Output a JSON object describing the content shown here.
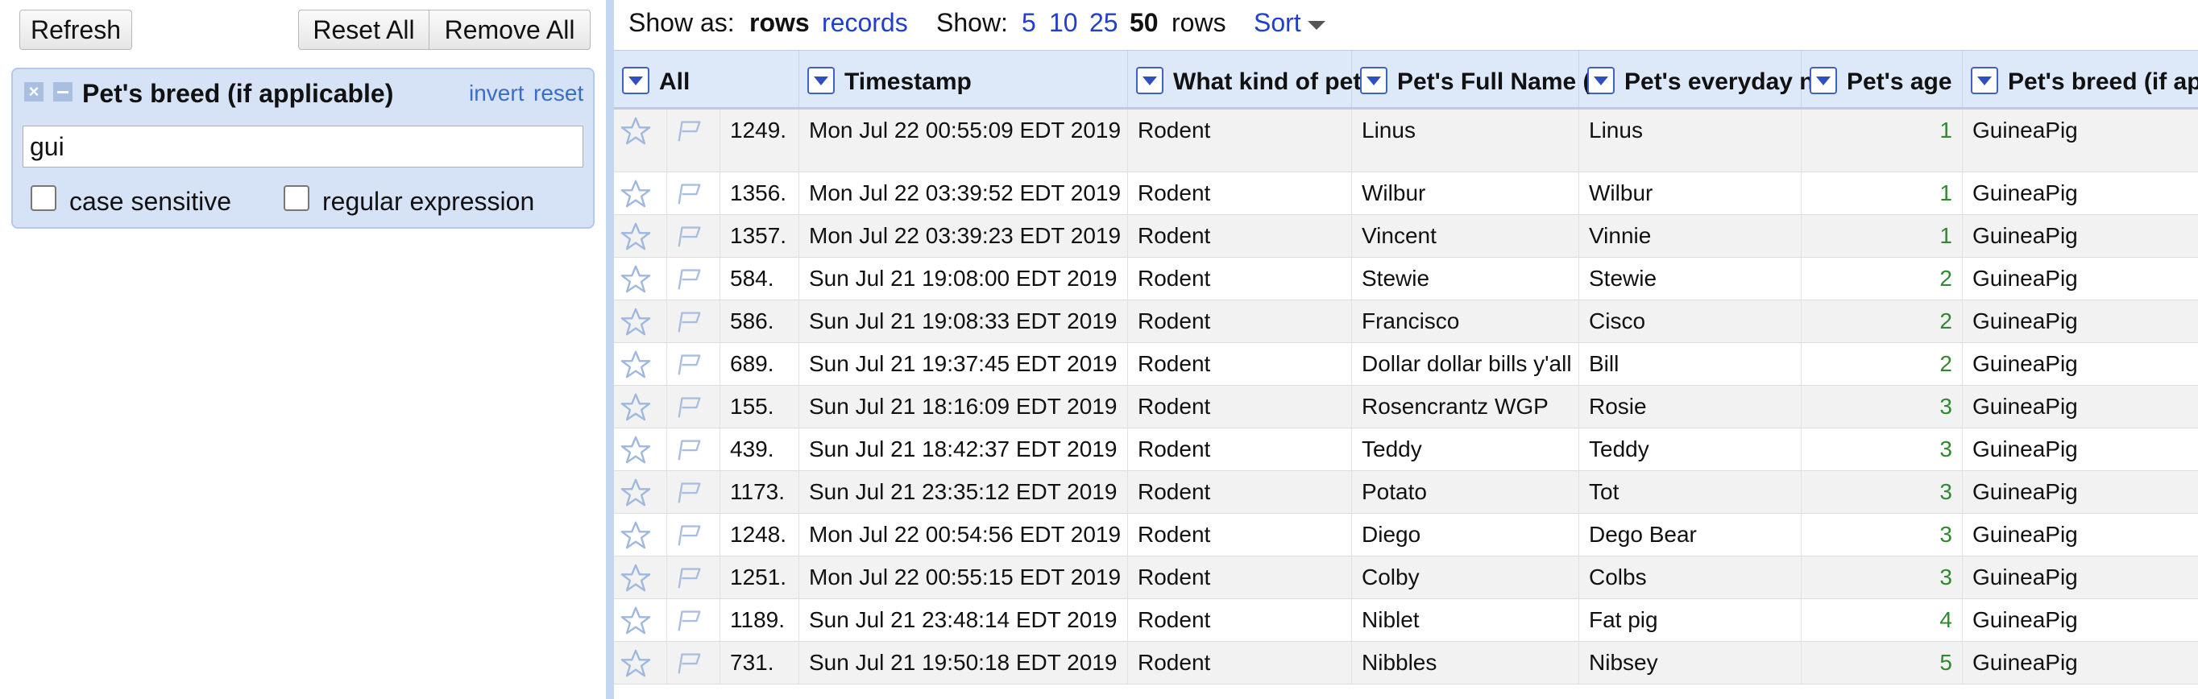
{
  "toolbar": {
    "refresh": "Refresh",
    "reset_all": "Reset All",
    "remove_all": "Remove All"
  },
  "facet": {
    "title": "Pet's breed (if applicable)",
    "invert": "invert",
    "reset": "reset",
    "query": "gui",
    "case_sensitive_label": "case sensitive",
    "regex_label": "regular expression",
    "case_sensitive": false,
    "regex": false
  },
  "view_bar": {
    "show_as": "Show as:",
    "rows": "rows",
    "records": "records",
    "show": "Show:",
    "opt_5": "5",
    "opt_10": "10",
    "opt_25": "25",
    "opt_50": "50",
    "rows_suffix": "rows",
    "sort": "Sort"
  },
  "columns": [
    {
      "key": "all",
      "label": "All"
    },
    {
      "key": "timestamp",
      "label": "Timestamp"
    },
    {
      "key": "kind",
      "label": "What kind of pet"
    },
    {
      "key": "full_name",
      "label": "Pet's Full Name ("
    },
    {
      "key": "everyday",
      "label": "Pet's everyday n"
    },
    {
      "key": "age",
      "label": "Pet's age"
    },
    {
      "key": "breed",
      "label": "Pet's breed (if ap"
    }
  ],
  "rows": [
    {
      "idx": "1249.",
      "timestamp": "Mon Jul 22 00:55:09 EDT 2019",
      "kind": "Rodent",
      "full_name": "Linus",
      "everyday": "Linus",
      "age": "1",
      "breed": "GuineaPig"
    },
    {
      "idx": "1356.",
      "timestamp": "Mon Jul 22 03:39:52 EDT 2019",
      "kind": "Rodent",
      "full_name": "Wilbur",
      "everyday": "Wilbur",
      "age": "1",
      "breed": "GuineaPig"
    },
    {
      "idx": "1357.",
      "timestamp": "Mon Jul 22 03:39:23 EDT 2019",
      "kind": "Rodent",
      "full_name": "Vincent",
      "everyday": "Vinnie",
      "age": "1",
      "breed": "GuineaPig"
    },
    {
      "idx": "584.",
      "timestamp": "Sun Jul 21 19:08:00 EDT 2019",
      "kind": "Rodent",
      "full_name": "Stewie",
      "everyday": "Stewie",
      "age": "2",
      "breed": "GuineaPig"
    },
    {
      "idx": "586.",
      "timestamp": "Sun Jul 21 19:08:33 EDT 2019",
      "kind": "Rodent",
      "full_name": "Francisco",
      "everyday": "Cisco",
      "age": "2",
      "breed": "GuineaPig"
    },
    {
      "idx": "689.",
      "timestamp": "Sun Jul 21 19:37:45 EDT 2019",
      "kind": "Rodent",
      "full_name": "Dollar dollar bills y'all",
      "everyday": "Bill",
      "age": "2",
      "breed": "GuineaPig"
    },
    {
      "idx": "155.",
      "timestamp": "Sun Jul 21 18:16:09 EDT 2019",
      "kind": "Rodent",
      "full_name": "Rosencrantz WGP",
      "everyday": "Rosie",
      "age": "3",
      "breed": "GuineaPig"
    },
    {
      "idx": "439.",
      "timestamp": "Sun Jul 21 18:42:37 EDT 2019",
      "kind": "Rodent",
      "full_name": "Teddy",
      "everyday": "Teddy",
      "age": "3",
      "breed": "GuineaPig"
    },
    {
      "idx": "1173.",
      "timestamp": "Sun Jul 21 23:35:12 EDT 2019",
      "kind": "Rodent",
      "full_name": "Potato",
      "everyday": "Tot",
      "age": "3",
      "breed": "GuineaPig"
    },
    {
      "idx": "1248.",
      "timestamp": "Mon Jul 22 00:54:56 EDT 2019",
      "kind": "Rodent",
      "full_name": "Diego",
      "everyday": "Dego Bear",
      "age": "3",
      "breed": "GuineaPig"
    },
    {
      "idx": "1251.",
      "timestamp": "Mon Jul 22 00:55:15 EDT 2019",
      "kind": "Rodent",
      "full_name": "Colby",
      "everyday": "Colbs",
      "age": "3",
      "breed": "GuineaPig"
    },
    {
      "idx": "1189.",
      "timestamp": "Sun Jul 21 23:48:14 EDT 2019",
      "kind": "Rodent",
      "full_name": "Niblet",
      "everyday": "Fat pig",
      "age": "4",
      "breed": "GuineaPig"
    },
    {
      "idx": "731.",
      "timestamp": "Sun Jul 21 19:50:18 EDT 2019",
      "kind": "Rodent",
      "full_name": "Nibbles",
      "everyday": "Nibsey",
      "age": "5",
      "breed": "GuineaPig"
    }
  ],
  "icons": {
    "star": "star-icon",
    "flag": "flag-icon",
    "dropdown": "chevron-down-icon",
    "close": "close-icon",
    "minimize": "minimize-icon"
  },
  "colors": {
    "link": "#1f3fd0",
    "facet_bg": "#d6e3f7",
    "header_bg": "#dde8f8",
    "age_text": "#2f8a2f",
    "star_outline": "#9fb8e0"
  }
}
